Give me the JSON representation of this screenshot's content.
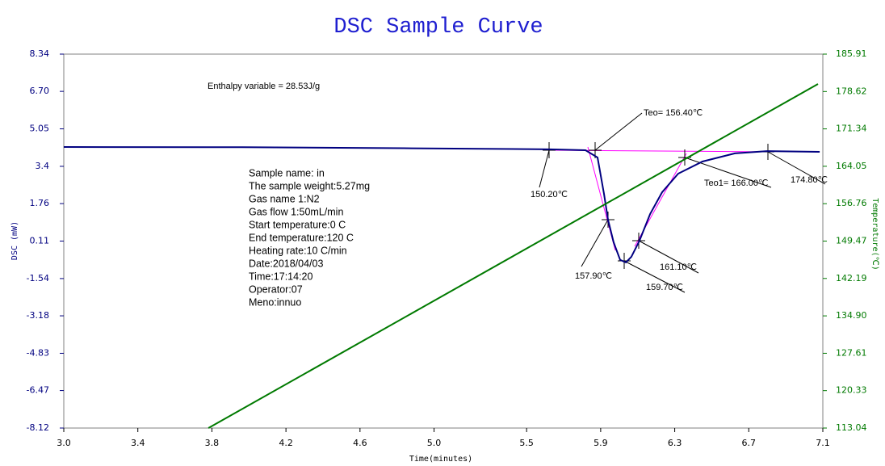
{
  "chart_data": {
    "type": "line",
    "title": "DSC Sample Curve",
    "xlabel": "Time(minutes)",
    "ylabel": "DSC (mW)",
    "y2label": "Temperature(℃)",
    "xlim": [
      3.0,
      7.1
    ],
    "xticks": [
      {
        "value": 3.0,
        "label": "3.0"
      },
      3.4,
      3.8,
      4.2,
      4.6,
      {
        "value": 5.0,
        "label": "5.0"
      },
      5.5,
      5.9,
      6.3,
      6.7,
      7.1
    ],
    "ylim": [
      -8.12,
      8.34
    ],
    "yticks": [
      -8.12,
      -6.47,
      -4.83,
      -3.18,
      -1.54,
      0.11,
      1.76,
      3.4,
      5.05,
      {
        "value": 6.7,
        "label": "6.70"
      },
      8.34
    ],
    "y2lim": [
      113.04,
      185.91
    ],
    "y2ticks": [
      113.04,
      120.33,
      127.61,
      {
        "value": 134.9,
        "label": "134.90"
      },
      142.19,
      149.47,
      156.76,
      164.05,
      171.34,
      178.62,
      185.91
    ],
    "grid": false,
    "series": [
      {
        "name": "DSC",
        "color": "#000080",
        "x": [
          3.0,
          3.964,
          4.836,
          5.621,
          5.818,
          5.883,
          5.918,
          5.94,
          5.97,
          6.005,
          6.036,
          6.066,
          6.11,
          6.167,
          6.232,
          6.319,
          6.45,
          6.625,
          6.799,
          7.083
        ],
        "values": [
          4.25,
          4.24,
          4.2,
          4.15,
          4.11,
          3.79,
          2.19,
          1.05,
          0.06,
          -0.72,
          -0.83,
          -0.58,
          0.13,
          1.3,
          2.26,
          3.08,
          3.61,
          3.97,
          4.07,
          4.04
        ]
      },
      {
        "name": "Temperature",
        "color": "#007a00",
        "axis": "y2",
        "x": [
          3.781,
          5.43,
          7.074
        ],
        "values": [
          113.04,
          146.6,
          180.09
        ]
      }
    ],
    "annotations": [
      "Enthalpy variable = 28.53J/g",
      "Teo= 156.40℃",
      "150.20℃",
      "157.90℃",
      "159.70℃",
      "161.10℃",
      "Teo1= 166.00℃",
      "174.80℃"
    ],
    "info": [
      "Sample name: in",
      "The sample weight:5.27mg",
      "Gas name 1:N2",
      "Gas flow 1:50mL/min",
      "Start temperature:0 C",
      "End temperature:120 C",
      "Heating rate:10 C/min",
      "Date:2018/04/03",
      "Time:17:14:20",
      "Operator:07",
      "Meno:innuo"
    ]
  }
}
